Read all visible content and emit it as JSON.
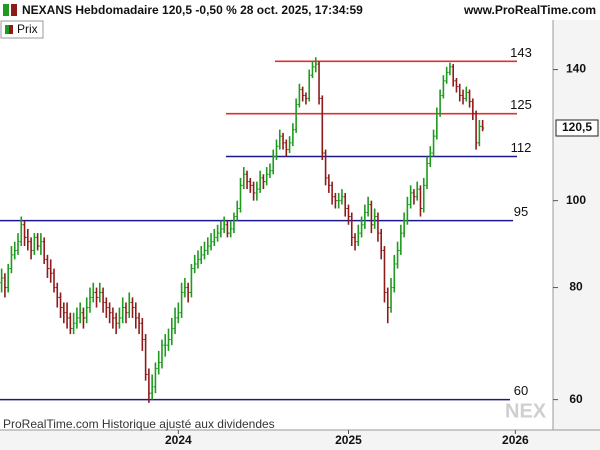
{
  "chart_data": {
    "type": "ohlc",
    "title": "NEXANS Hebdomadaire 120,5 -0,50 % 28 oct. 2025, 17:34:59",
    "source": "www.ProRealTime.com",
    "legend": "Prix",
    "footer": "ProRealTime.com  Historique ajusté aux dividendes",
    "watermark": "NEX",
    "log_scale": true,
    "up_color": "#1e9a1e",
    "down_color": "#8e1b1b",
    "ylim": [
      55.5,
      159
    ],
    "yticks": [
      60,
      80,
      100,
      140
    ],
    "last_price": {
      "value": 120.5,
      "label": "120,5"
    },
    "levels": [
      {
        "value": 143,
        "color": "#e03030"
      },
      {
        "value": 125,
        "color": "#e03030"
      },
      {
        "value": 112,
        "color": "#1a1a8c"
      },
      {
        "value": 95,
        "color": "#1a1a8c"
      },
      {
        "value": 60,
        "color": "#1a1a8c"
      }
    ],
    "categories": [
      null,
      null,
      null,
      null,
      null,
      null,
      null,
      null,
      null,
      null,
      null,
      null,
      null,
      null,
      null,
      null,
      null,
      null,
      null,
      null,
      null,
      null,
      null,
      null,
      null,
      null,
      null,
      null,
      null,
      null,
      null,
      null,
      null,
      null,
      null,
      null,
      null,
      null,
      null,
      null,
      null,
      null,
      null,
      null,
      null,
      null,
      null,
      null,
      null,
      null,
      null,
      null,
      null,
      null,
      "2024",
      null,
      null,
      null,
      null,
      null,
      null,
      null,
      null,
      null,
      null,
      null,
      null,
      null,
      null,
      null,
      null,
      null,
      null,
      null,
      null,
      null,
      null,
      null,
      null,
      null,
      null,
      null,
      null,
      null,
      null,
      null,
      null,
      null,
      null,
      null,
      null,
      null,
      null,
      null,
      null,
      null,
      null,
      null,
      null,
      null,
      null,
      null,
      null,
      null,
      null,
      null,
      "2025",
      null,
      null,
      null,
      null,
      null,
      null,
      null,
      null,
      null,
      null,
      null,
      null,
      null,
      null,
      null,
      null,
      null,
      null,
      null,
      null,
      null,
      null,
      null,
      null,
      null,
      null,
      null,
      null,
      null,
      null,
      null,
      null,
      null,
      null,
      null,
      null,
      null,
      null,
      null,
      null,
      null,
      null,
      null,
      null,
      null,
      null,
      null,
      null,
      null,
      null,
      "2026",
      null,
      null,
      null,
      null,
      null,
      null,
      null,
      null,
      null,
      null,
      null
    ],
    "open": [
      81,
      82,
      80,
      84,
      87,
      88,
      90,
      94,
      91,
      90,
      88,
      91,
      89,
      90,
      86,
      84,
      83,
      80,
      78,
      76,
      75,
      74,
      72,
      73,
      74,
      75,
      74,
      76,
      78,
      79,
      78,
      79,
      77,
      76,
      75,
      74,
      73,
      74,
      76,
      75,
      77,
      76,
      74,
      73,
      70,
      64,
      61,
      62,
      65,
      66,
      69,
      69,
      70,
      72,
      74,
      75,
      79,
      80,
      79,
      84,
      85,
      86,
      87,
      88,
      89,
      90,
      91,
      92,
      93,
      94,
      92,
      93,
      96,
      98,
      104,
      107,
      105,
      104,
      102,
      103,
      106,
      105,
      107,
      108,
      112,
      115,
      118,
      116,
      114,
      116,
      120,
      128,
      133,
      131,
      130,
      138,
      141,
      142,
      130,
      113,
      106,
      104,
      101,
      100,
      100,
      101,
      98,
      96,
      91,
      90,
      92,
      94,
      97,
      99,
      94,
      96,
      92,
      88,
      79,
      76,
      80,
      85,
      88,
      92,
      95,
      99,
      102,
      101,
      103,
      98,
      104,
      110,
      113,
      118,
      125,
      131,
      136,
      139,
      141,
      136,
      134,
      131,
      130,
      132,
      129,
      125,
      116,
      121,
      null,
      null,
      null,
      null,
      null,
      null,
      null,
      null,
      null,
      null,
      null,
      null,
      null,
      null,
      null,
      null,
      null,
      null,
      null,
      null,
      null
    ],
    "high": [
      84,
      83,
      85,
      89,
      90,
      92,
      96,
      95,
      93,
      91,
      92,
      92,
      92,
      91,
      87,
      86,
      84,
      81,
      79,
      77,
      77,
      75,
      75,
      76,
      77,
      76,
      78,
      80,
      81,
      80,
      81,
      80,
      78,
      77,
      76,
      75,
      76,
      78,
      77,
      79,
      78,
      77,
      75,
      74,
      71,
      65,
      64,
      66,
      68,
      70,
      71,
      72,
      74,
      76,
      77,
      81,
      82,
      81,
      85,
      87,
      88,
      89,
      90,
      91,
      92,
      93,
      94,
      95,
      96,
      95,
      95,
      97,
      100,
      106,
      109,
      108,
      106,
      105,
      105,
      108,
      107,
      109,
      110,
      114,
      117,
      120,
      119,
      117,
      118,
      122,
      130,
      135,
      134,
      132,
      140,
      143,
      144.5,
      143,
      131,
      114,
      107,
      105,
      102,
      102,
      103,
      102,
      99,
      97,
      92,
      94,
      96,
      99,
      101,
      100,
      98,
      97,
      93,
      89,
      80,
      82,
      87,
      90,
      94,
      97,
      101,
      104,
      103,
      105,
      104,
      106,
      112,
      115,
      120,
      127,
      133,
      138,
      141,
      142.5,
      142,
      137,
      135,
      133,
      134,
      133,
      130,
      126,
      123,
      123,
      null,
      null,
      null,
      null,
      null,
      null,
      null,
      null,
      null,
      null,
      null,
      null,
      null,
      null,
      null,
      null,
      null,
      null,
      null,
      null,
      null
    ],
    "low": [
      79,
      78,
      79,
      83,
      86,
      87,
      89,
      89,
      88,
      86,
      87,
      88,
      87,
      85,
      82,
      81,
      79,
      76,
      74,
      73,
      72,
      71,
      71,
      72,
      73,
      72,
      73,
      75,
      77,
      76,
      77,
      75,
      74,
      73,
      72,
      71,
      72,
      73,
      73,
      74,
      74,
      72,
      71,
      68,
      63,
      59.5,
      60,
      61,
      64,
      65,
      67,
      68,
      69,
      71,
      73,
      74,
      78,
      77,
      78,
      83,
      84,
      85,
      86,
      87,
      88,
      89,
      90,
      91,
      92,
      91,
      91,
      92,
      95,
      97,
      103,
      103,
      102,
      100,
      100,
      102,
      103,
      104,
      106,
      107,
      111,
      114,
      114,
      112,
      113,
      115,
      119,
      127,
      129,
      128,
      129,
      137,
      139,
      128,
      111,
      104,
      102,
      99,
      98,
      98,
      99,
      96,
      94,
      89,
      88,
      89,
      91,
      93,
      96,
      92,
      93,
      90,
      86,
      77,
      73,
      75,
      79,
      84,
      87,
      91,
      94,
      98,
      99,
      100,
      96,
      97,
      103,
      109,
      112,
      117,
      124,
      130,
      135,
      138,
      134,
      132,
      129,
      128,
      129,
      127,
      123,
      114,
      115,
      119.5,
      null,
      null,
      null,
      null,
      null,
      null,
      null,
      null,
      null,
      null,
      null,
      null,
      null,
      null,
      null,
      null,
      null,
      null,
      null,
      null,
      null
    ],
    "close": [
      82,
      80,
      84,
      87,
      88,
      90,
      94,
      91,
      90,
      88,
      91,
      89,
      90,
      86,
      84,
      83,
      80,
      78,
      76,
      75,
      74,
      72,
      73,
      74,
      75,
      74,
      76,
      78,
      79,
      78,
      79,
      77,
      76,
      75,
      74,
      73,
      74,
      76,
      75,
      77,
      76,
      74,
      73,
      70,
      64,
      61,
      62,
      65,
      66,
      69,
      69,
      70,
      72,
      74,
      75,
      79,
      80,
      79,
      84,
      85,
      86,
      87,
      88,
      89,
      90,
      91,
      92,
      93,
      94,
      92,
      93,
      96,
      98,
      104,
      107,
      105,
      104,
      102,
      103,
      106,
      105,
      107,
      108,
      112,
      115,
      118,
      116,
      114,
      116,
      120,
      128,
      133,
      131,
      130,
      138,
      141,
      142,
      130,
      113,
      106,
      104,
      101,
      100,
      100,
      101,
      98,
      96,
      91,
      90,
      92,
      94,
      97,
      99,
      94,
      96,
      92,
      88,
      79,
      76,
      80,
      85,
      88,
      92,
      95,
      99,
      102,
      101,
      103,
      98,
      104,
      110,
      113,
      118,
      125,
      131,
      136,
      139,
      141,
      136,
      134,
      131,
      130,
      132,
      129,
      125,
      116,
      121,
      120.5,
      null,
      null,
      null,
      null,
      null,
      null,
      null,
      null,
      null,
      null,
      null,
      null,
      null,
      null,
      null,
      null,
      null,
      null,
      null,
      null,
      null
    ]
  }
}
